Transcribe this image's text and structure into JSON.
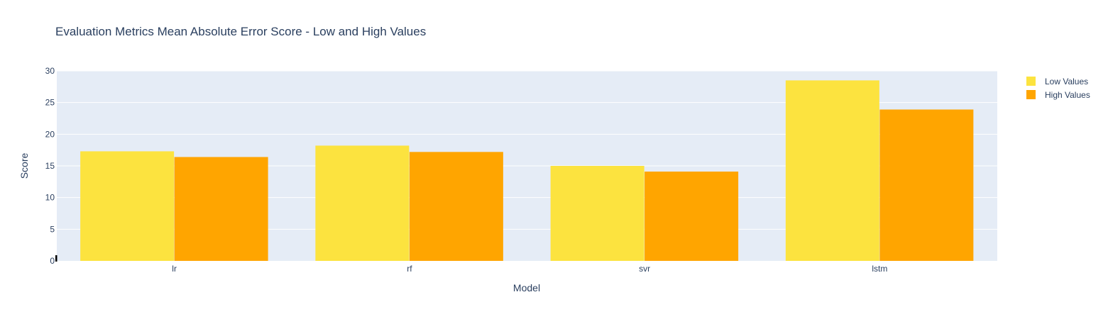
{
  "chart_data": {
    "type": "bar",
    "title": "Evaluation Metrics Mean Absolute Error Score - Low and High Values",
    "xlabel": "Model",
    "ylabel": "Score",
    "categories": [
      "lr",
      "rf",
      "svr",
      "lstm"
    ],
    "series": [
      {
        "name": "Low Values",
        "color": "#fce33f",
        "values": [
          17.3,
          18.2,
          15.0,
          28.5
        ]
      },
      {
        "name": "High Values",
        "color": "#ffa500",
        "values": [
          16.4,
          17.2,
          14.1,
          23.9
        ]
      }
    ],
    "ylim": [
      0,
      30
    ],
    "yticks": [
      "0",
      "5",
      "10",
      "15",
      "20",
      "25",
      "30"
    ],
    "grid": true,
    "legend": "top-right",
    "plot_background": "#e5ecf6"
  }
}
